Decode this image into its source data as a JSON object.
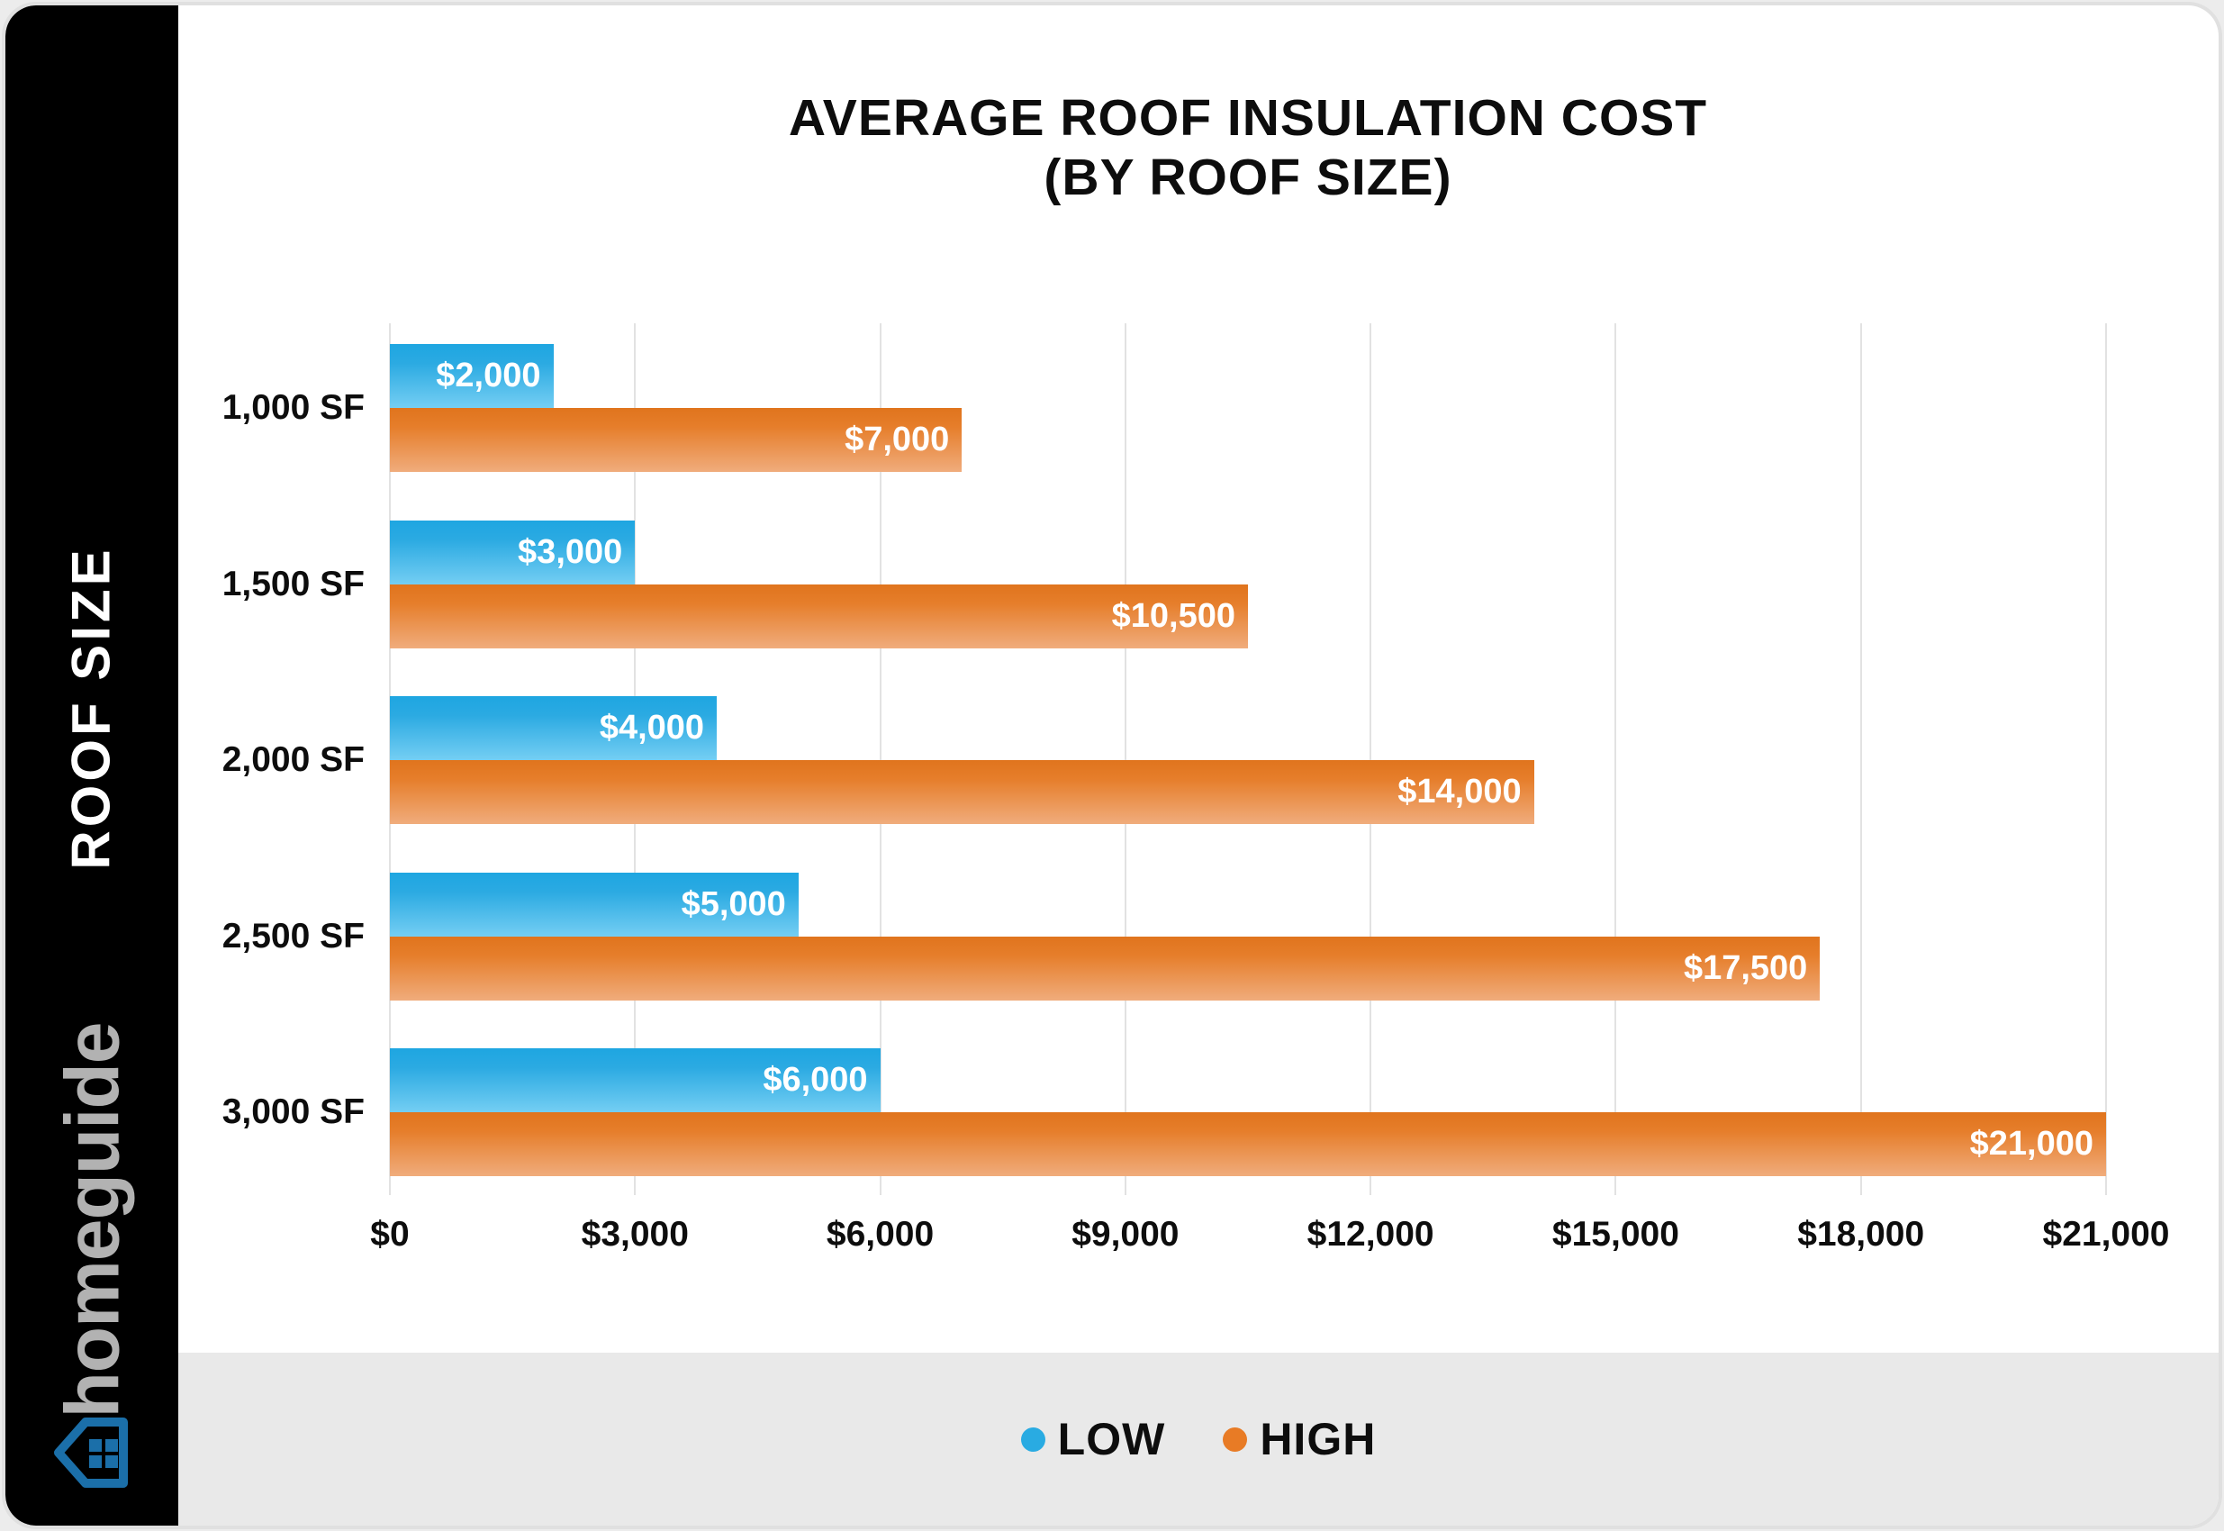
{
  "brand": {
    "name": "homeguide"
  },
  "sidebar": {
    "axis_label": "ROOF SIZE"
  },
  "title": {
    "line1": "AVERAGE ROOF INSULATION COST",
    "line2": "(BY ROOF SIZE)"
  },
  "legend": [
    {
      "label": "LOW",
      "color": "#29ABE2"
    },
    {
      "label": "HIGH",
      "color": "#E87B25"
    }
  ],
  "colors": {
    "low_top": "#1EA6E1",
    "low_bottom": "#74CEF3",
    "high_top": "#E0741D",
    "high_bottom": "#F0AC7C",
    "sidebar_bg": "#000000",
    "footer_bg": "#E9E9E9",
    "gridline": "#E2E2E2",
    "logo_blue": "#1B6FA9",
    "logo_gray": "#B2B2B2"
  },
  "chart_data": {
    "type": "bar",
    "orientation": "horizontal",
    "title": "AVERAGE ROOF INSULATION COST (BY ROOF SIZE)",
    "ylabel": "ROOF SIZE",
    "xlabel": "",
    "grid": true,
    "legend_position": "bottom",
    "xlim": [
      0,
      21000
    ],
    "x_ticks": [
      "$0",
      "$3,000",
      "$6,000",
      "$9,000",
      "$12,000",
      "$15,000",
      "$18,000",
      "$21,000"
    ],
    "categories": [
      "1,000 SF",
      "1,500 SF",
      "2,000 SF",
      "2,500 SF",
      "3,000 SF"
    ],
    "series": [
      {
        "name": "LOW",
        "values": [
          2000,
          3000,
          4000,
          5000,
          6000
        ],
        "labels": [
          "$2,000",
          "$3,000",
          "$4,000",
          "$5,000",
          "$6,000"
        ]
      },
      {
        "name": "HIGH",
        "values": [
          7000,
          10500,
          14000,
          17500,
          21000
        ],
        "labels": [
          "$7,000",
          "$10,500",
          "$14,000",
          "$17,500",
          "$21,000"
        ]
      }
    ]
  }
}
